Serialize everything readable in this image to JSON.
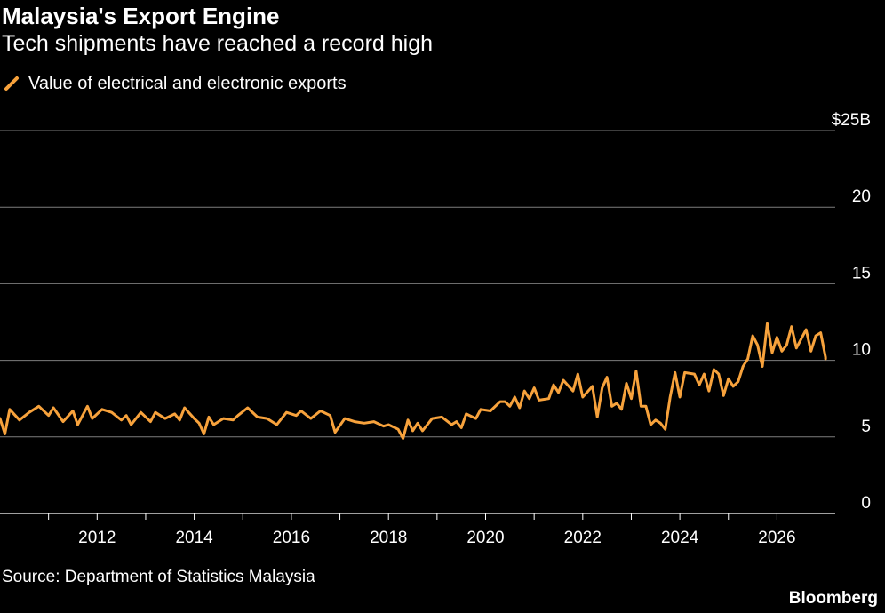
{
  "chart_data": {
    "type": "line",
    "title": "Malaysia's Export Engine",
    "subtitle": "Tech shipments have reached a record high",
    "source": "Source: Department of Statistics Malaysia",
    "brand": "Bloomberg",
    "legend": {
      "position": "top-left"
    },
    "grid": true,
    "xlim": [
      2010,
      2027.2
    ],
    "ylim": [
      0,
      25
    ],
    "x_ticks": [
      {
        "value": 2012,
        "label": "2012"
      },
      {
        "value": 2014,
        "label": "2014"
      },
      {
        "value": 2016,
        "label": "2016"
      },
      {
        "value": 2018,
        "label": "2018"
      },
      {
        "value": 2020,
        "label": "2020"
      },
      {
        "value": 2022,
        "label": "2022"
      },
      {
        "value": 2024,
        "label": "2024"
      },
      {
        "value": 2026,
        "label": "2026"
      }
    ],
    "y_ticks": [
      {
        "value": 25,
        "label": "$25B"
      },
      {
        "value": 20,
        "label": "20"
      },
      {
        "value": 15,
        "label": "15"
      },
      {
        "value": 10,
        "label": "10"
      },
      {
        "value": 5,
        "label": "5"
      },
      {
        "value": 0,
        "label": "0"
      }
    ],
    "series": [
      {
        "name": "Value of electrical and electronic exports",
        "color": "#f7a23c",
        "points": [
          [
            2010.0,
            6.2
          ],
          [
            2010.1,
            5.2
          ],
          [
            2010.2,
            6.8
          ],
          [
            2010.4,
            6.1
          ],
          [
            2010.6,
            6.6
          ],
          [
            2010.8,
            7.0
          ],
          [
            2011.0,
            6.4
          ],
          [
            2011.1,
            6.9
          ],
          [
            2011.3,
            6.0
          ],
          [
            2011.5,
            6.7
          ],
          [
            2011.6,
            5.8
          ],
          [
            2011.8,
            7.0
          ],
          [
            2011.9,
            6.2
          ],
          [
            2012.1,
            6.8
          ],
          [
            2012.3,
            6.6
          ],
          [
            2012.5,
            6.1
          ],
          [
            2012.6,
            6.4
          ],
          [
            2012.7,
            5.8
          ],
          [
            2012.9,
            6.6
          ],
          [
            2013.1,
            6.0
          ],
          [
            2013.2,
            6.6
          ],
          [
            2013.4,
            6.2
          ],
          [
            2013.6,
            6.5
          ],
          [
            2013.7,
            6.1
          ],
          [
            2013.8,
            6.9
          ],
          [
            2014.0,
            6.2
          ],
          [
            2014.1,
            5.9
          ],
          [
            2014.2,
            5.2
          ],
          [
            2014.3,
            6.3
          ],
          [
            2014.4,
            5.8
          ],
          [
            2014.6,
            6.2
          ],
          [
            2014.8,
            6.1
          ],
          [
            2014.9,
            6.4
          ],
          [
            2015.1,
            6.9
          ],
          [
            2015.3,
            6.3
          ],
          [
            2015.5,
            6.2
          ],
          [
            2015.7,
            5.8
          ],
          [
            2015.9,
            6.6
          ],
          [
            2016.1,
            6.4
          ],
          [
            2016.2,
            6.7
          ],
          [
            2016.4,
            6.2
          ],
          [
            2016.6,
            6.7
          ],
          [
            2016.8,
            6.4
          ],
          [
            2016.9,
            5.3
          ],
          [
            2017.1,
            6.2
          ],
          [
            2017.3,
            6.0
          ],
          [
            2017.5,
            5.9
          ],
          [
            2017.7,
            6.0
          ],
          [
            2017.9,
            5.7
          ],
          [
            2018.0,
            5.8
          ],
          [
            2018.2,
            5.5
          ],
          [
            2018.3,
            4.9
          ],
          [
            2018.4,
            6.1
          ],
          [
            2018.5,
            5.4
          ],
          [
            2018.6,
            5.9
          ],
          [
            2018.7,
            5.4
          ],
          [
            2018.9,
            6.2
          ],
          [
            2019.1,
            6.3
          ],
          [
            2019.3,
            5.8
          ],
          [
            2019.4,
            6.0
          ],
          [
            2019.5,
            5.6
          ],
          [
            2019.6,
            6.5
          ],
          [
            2019.8,
            6.2
          ],
          [
            2019.9,
            6.8
          ],
          [
            2020.1,
            6.7
          ],
          [
            2020.3,
            7.3
          ],
          [
            2020.4,
            7.3
          ],
          [
            2020.5,
            7.0
          ],
          [
            2020.6,
            7.6
          ],
          [
            2020.7,
            6.9
          ],
          [
            2020.8,
            8.0
          ],
          [
            2020.9,
            7.5
          ],
          [
            2021.0,
            8.2
          ],
          [
            2021.1,
            7.4
          ],
          [
            2021.3,
            7.5
          ],
          [
            2021.4,
            8.4
          ],
          [
            2021.5,
            7.9
          ],
          [
            2021.6,
            8.7
          ],
          [
            2021.8,
            8.0
          ],
          [
            2021.9,
            9.1
          ],
          [
            2022.0,
            7.6
          ],
          [
            2022.2,
            8.3
          ],
          [
            2022.3,
            6.3
          ],
          [
            2022.4,
            8.2
          ],
          [
            2022.5,
            8.9
          ],
          [
            2022.6,
            7.0
          ],
          [
            2022.7,
            7.2
          ],
          [
            2022.8,
            6.8
          ],
          [
            2022.9,
            8.5
          ],
          [
            2023.0,
            7.5
          ],
          [
            2023.1,
            9.3
          ],
          [
            2023.2,
            7.0
          ],
          [
            2023.3,
            7.0
          ],
          [
            2023.4,
            5.8
          ],
          [
            2023.5,
            6.1
          ],
          [
            2023.6,
            5.9
          ],
          [
            2023.7,
            5.5
          ],
          [
            2023.8,
            7.6
          ],
          [
            2023.9,
            9.2
          ],
          [
            2024.0,
            7.6
          ],
          [
            2024.1,
            9.2
          ],
          [
            2024.3,
            9.1
          ],
          [
            2024.4,
            8.4
          ],
          [
            2024.5,
            9.1
          ],
          [
            2024.6,
            8.0
          ],
          [
            2024.7,
            9.4
          ],
          [
            2024.8,
            9.1
          ],
          [
            2024.9,
            7.7
          ],
          [
            2025.0,
            8.8
          ],
          [
            2025.1,
            8.3
          ],
          [
            2025.2,
            8.6
          ],
          [
            2025.3,
            9.6
          ],
          [
            2025.4,
            10.1
          ],
          [
            2025.5,
            11.6
          ],
          [
            2025.6,
            11.0
          ],
          [
            2025.7,
            9.6
          ],
          [
            2025.8,
            12.4
          ],
          [
            2025.9,
            10.5
          ],
          [
            2026.0,
            11.5
          ],
          [
            2026.1,
            10.6
          ],
          [
            2026.2,
            11.0
          ],
          [
            2026.3,
            12.2
          ],
          [
            2026.4,
            10.8
          ],
          [
            2026.5,
            11.4
          ],
          [
            2026.6,
            12.0
          ],
          [
            2026.7,
            10.6
          ],
          [
            2026.8,
            11.6
          ],
          [
            2026.9,
            11.8
          ],
          [
            2027.0,
            10.2
          ],
          [
            2027.0,
            10.1
          ]
        ]
      }
    ]
  }
}
